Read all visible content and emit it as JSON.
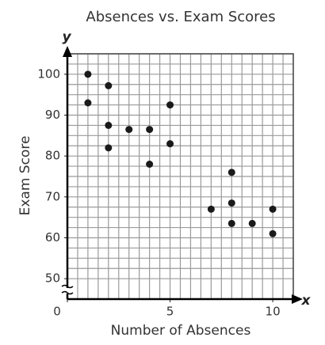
{
  "chart_data": {
    "type": "scatter",
    "title": "Absences vs. Exam Scores",
    "x_label": "Number of Absences",
    "y_label": "Exam Score",
    "x_axis_letter": "x",
    "y_axis_letter": "y",
    "x": [
      1,
      1,
      2,
      2,
      2,
      3,
      4,
      4,
      5,
      5,
      7,
      8,
      8,
      8,
      9,
      10,
      10
    ],
    "values": [
      100,
      93,
      97.2,
      87.5,
      82,
      86.5,
      86.5,
      78,
      92.5,
      83,
      67,
      76,
      68.5,
      63.5,
      63.5,
      67,
      61
    ],
    "color": "#1a1a1a",
    "xlim": [
      0,
      11
    ],
    "ylim": [
      45,
      105
    ],
    "xticks": [
      0,
      5,
      10
    ],
    "yticks": [
      50,
      60,
      70,
      80,
      90,
      100
    ],
    "xgrid": [
      0.5,
      1,
      1.5,
      2,
      2.5,
      3,
      3.5,
      4,
      4.5,
      5,
      5.5,
      6,
      6.5,
      7,
      7.5,
      8,
      8.5,
      9,
      9.5,
      10,
      10.5,
      11
    ],
    "ygrid": [
      50,
      52.5,
      55,
      57.5,
      60,
      62.5,
      65,
      67.5,
      70,
      72.5,
      75,
      77.5,
      80,
      82.5,
      85,
      87.5,
      90,
      92.5,
      95,
      97.5,
      100,
      102.5,
      105
    ],
    "grid": true
  }
}
